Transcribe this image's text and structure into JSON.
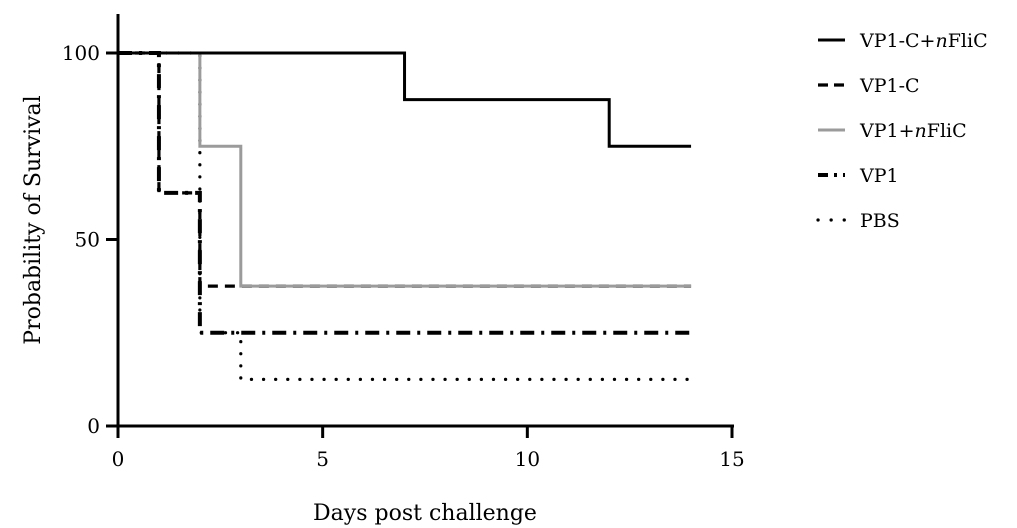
{
  "chart_data": {
    "type": "line",
    "subtype": "step",
    "title": "",
    "xlabel": "Days post challenge",
    "ylabel": "Probability of Survival",
    "xlim": [
      0,
      15
    ],
    "ylim": [
      0,
      100
    ],
    "xticks": [
      "0",
      "5",
      "10",
      "15"
    ],
    "yticks": [
      "0",
      "50",
      "100"
    ],
    "grid": false,
    "legend_position": "right",
    "series": [
      {
        "name_parts": [
          "VP1-C+",
          "n",
          "FliC"
        ],
        "label": "VP1-C+nFliC",
        "color": "#000000",
        "line_style": "solid",
        "x": [
          0,
          7,
          12,
          14
        ],
        "y": [
          100,
          87.5,
          75,
          75
        ]
      },
      {
        "name_parts": [
          "VP1-C",
          "",
          ""
        ],
        "label": "VP1-C",
        "color": "#000000",
        "line_style": "dashed",
        "x": [
          0,
          1,
          2,
          14
        ],
        "y": [
          100,
          62.5,
          37.5,
          37.5
        ]
      },
      {
        "name_parts": [
          "VP1+",
          "n",
          "FliC"
        ],
        "label": "VP1+nFliC",
        "color": "#9b9b9b",
        "line_style": "solid",
        "x": [
          0,
          2,
          3,
          14
        ],
        "y": [
          100,
          75,
          37.5,
          37.5
        ]
      },
      {
        "name_parts": [
          "VP1",
          "",
          ""
        ],
        "label": "VP1",
        "color": "#000000",
        "line_style": "dash-dot",
        "x": [
          0,
          1,
          2,
          14
        ],
        "y": [
          100,
          62.5,
          25,
          25
        ]
      },
      {
        "name_parts": [
          "PBS",
          "",
          ""
        ],
        "label": "PBS",
        "color": "#000000",
        "line_style": "dotted",
        "x": [
          0,
          2,
          3,
          14
        ],
        "y": [
          100,
          25,
          12.5,
          12.5
        ]
      }
    ]
  }
}
